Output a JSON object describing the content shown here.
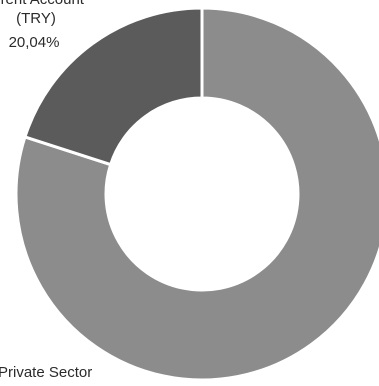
{
  "chart_data": {
    "type": "pie",
    "variant": "donut",
    "title": "",
    "legend": "none",
    "slices": [
      {
        "name_lines": [
          "Private Sector"
        ],
        "value_label": "",
        "value": 79.96,
        "color": "#8c8c8c"
      },
      {
        "name_lines": [
          "...rent Account",
          "(TRY)"
        ],
        "value_label": "20,04%",
        "value": 20.04,
        "color": "#5b5b5b"
      }
    ],
    "separator_color": "#ffffff"
  }
}
